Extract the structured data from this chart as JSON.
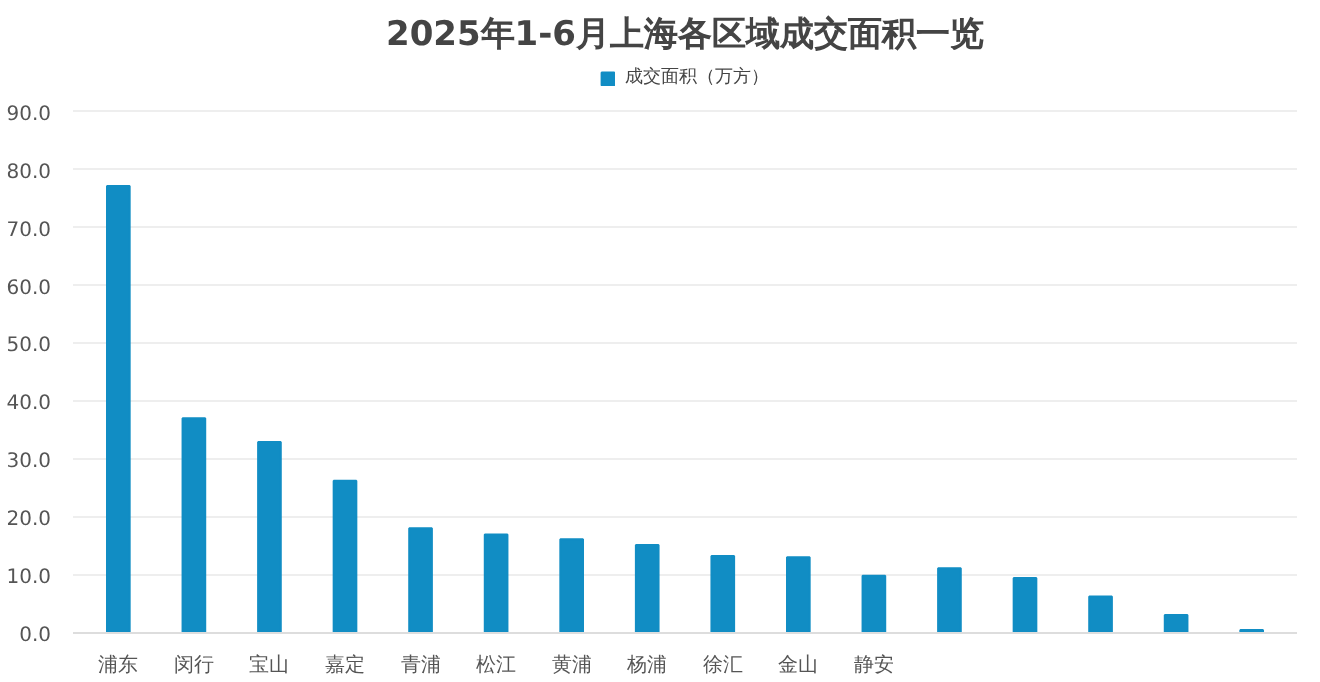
{
  "chart_data": {
    "type": "bar",
    "title": "2025年1-6月上海各区域成交面积一览",
    "categories": [
      "浦东",
      "闵行",
      "宝山",
      "嘉定",
      "青浦",
      "松江",
      "黄浦",
      "杨浦",
      "徐汇",
      "金山",
      "静安",
      null,
      null,
      null,
      null,
      null
    ],
    "series": [
      {
        "name": "成交面积（万方）",
        "color": "#118dc4",
        "values": [
          77.2,
          37.1,
          33.0,
          26.3,
          18.1,
          17.0,
          16.2,
          15.2,
          13.3,
          13.1,
          9.9,
          11.2,
          9.5,
          6.3,
          3.1,
          0.5
        ]
      }
    ],
    "ylim": [
      0,
      90
    ],
    "yticks": [
      {
        "value": 0,
        "label": "0.0"
      },
      {
        "value": 10,
        "label": "10.0"
      },
      {
        "value": 20,
        "label": "20.0"
      },
      {
        "value": 30,
        "label": "30.0"
      },
      {
        "value": 40,
        "label": "40.0"
      },
      {
        "value": 50,
        "label": "50.0"
      },
      {
        "value": 60,
        "label": "60.0"
      },
      {
        "value": 70,
        "label": "70.0"
      },
      {
        "value": 80,
        "label": "80.0"
      },
      {
        "value": 90,
        "label": "90.0"
      }
    ],
    "grid": "y",
    "legend": "top"
  }
}
